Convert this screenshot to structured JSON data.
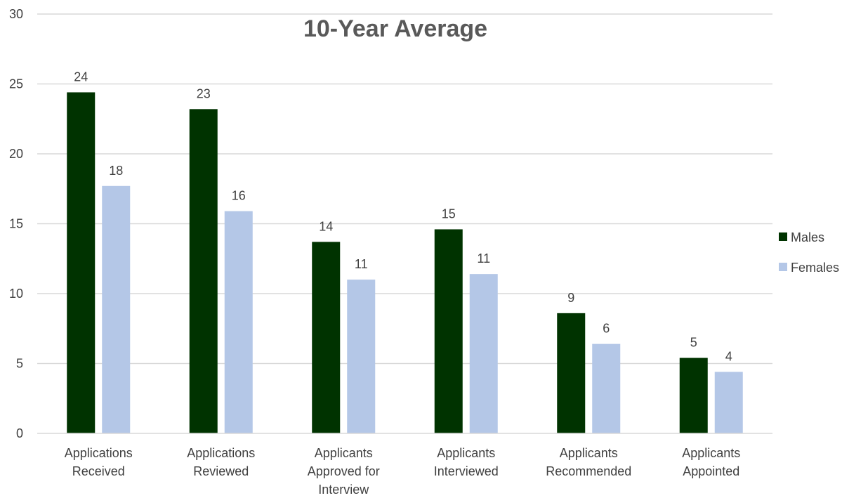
{
  "chart_data": {
    "type": "bar",
    "title": "10-Year Average",
    "categories": [
      [
        "Applications",
        "Received"
      ],
      [
        "Applications",
        "Reviewed"
      ],
      [
        "Applicants",
        "Approved for",
        "Interview"
      ],
      [
        "Applicants",
        "Interviewed"
      ],
      [
        "Applicants",
        "Recommended"
      ],
      [
        "Applicants",
        "Appointed"
      ]
    ],
    "series": [
      {
        "name": "Males",
        "color": "#003300",
        "values": [
          24.4,
          23.2,
          13.7,
          14.6,
          8.6,
          5.4
        ],
        "labels": [
          "24",
          "23",
          "14",
          "15",
          "9",
          "5"
        ]
      },
      {
        "name": "Females",
        "color": "#b4c7e7",
        "values": [
          17.7,
          15.9,
          11.0,
          11.4,
          6.4,
          4.4
        ],
        "labels": [
          "18",
          "16",
          "11",
          "11",
          "6",
          "4"
        ]
      }
    ],
    "ylim": [
      0,
      30
    ],
    "yticks": [
      "0",
      "5",
      "10",
      "15",
      "20",
      "25",
      "30"
    ],
    "grid": true,
    "legend_position": "right",
    "xlabel": "",
    "ylabel": ""
  }
}
